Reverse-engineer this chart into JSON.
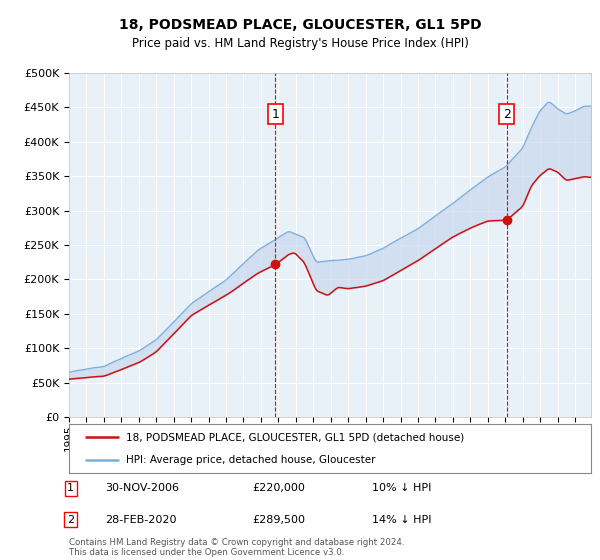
{
  "title": "18, PODSMEAD PLACE, GLOUCESTER, GL1 5PD",
  "subtitle": "Price paid vs. HM Land Registry's House Price Index (HPI)",
  "hpi_color": "#7aadde",
  "price_color": "#cc1111",
  "fill_color": "#c8d8ee",
  "marker1_price": 220000,
  "marker2_price": 289500,
  "marker1_date_str": "30-NOV-2006",
  "marker2_date_str": "28-FEB-2020",
  "marker1_pct": "10% ↓ HPI",
  "marker2_pct": "14% ↓ HPI",
  "legend1": "18, PODSMEAD PLACE, GLOUCESTER, GL1 5PD (detached house)",
  "legend2": "HPI: Average price, detached house, Gloucester",
  "footer": "Contains HM Land Registry data © Crown copyright and database right 2024.\nThis data is licensed under the Open Government Licence v3.0.",
  "ylim": [
    0,
    500000
  ],
  "yticks": [
    0,
    50000,
    100000,
    150000,
    200000,
    250000,
    300000,
    350000,
    400000,
    450000,
    500000
  ],
  "background_color": "#e8f0f8",
  "grid_color": "#ffffff",
  "start_year": 1995,
  "end_year": 2025
}
